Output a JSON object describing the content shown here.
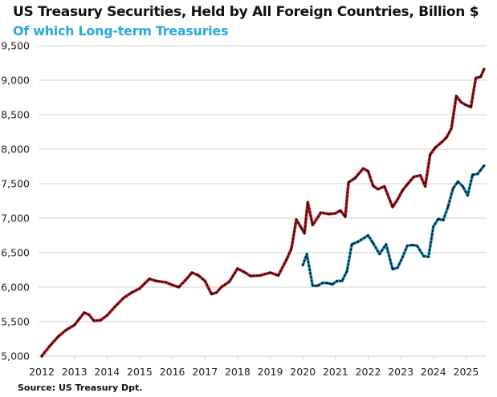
{
  "chart_data": {
    "type": "line",
    "title": "US Treasury Securities, Held by All Foreign Countries, Billion $",
    "subtitle": "Of which Long-term Treasuries",
    "source": "Source: US Treasury  Dpt.",
    "xlabel": "",
    "ylabel": "",
    "xlim": [
      2012,
      2025.6
    ],
    "ylim": [
      5000,
      9500
    ],
    "x_ticks": [
      "2012",
      "2013",
      "2014",
      "2015",
      "2016",
      "2017",
      "2018",
      "2019",
      "2020",
      "2021",
      "2022",
      "2023",
      "2024",
      "2025"
    ],
    "y_ticks": [
      "5,000",
      "5,500",
      "6,000",
      "6,500",
      "7,000",
      "7,500",
      "8,000",
      "8,500",
      "9,000",
      "9,500"
    ],
    "grid": true,
    "series": [
      {
        "name": "US Treasury Securities, Held by All Foreign Countries",
        "color": "#e8161b",
        "x": [
          2012.0,
          2012.25,
          2012.5,
          2012.75,
          2013.0,
          2013.15,
          2013.3,
          2013.45,
          2013.6,
          2013.8,
          2014.0,
          2014.25,
          2014.5,
          2014.75,
          2015.0,
          2015.15,
          2015.3,
          2015.5,
          2015.8,
          2016.0,
          2016.2,
          2016.4,
          2016.6,
          2016.8,
          2017.0,
          2017.2,
          2017.35,
          2017.5,
          2017.75,
          2018.0,
          2018.2,
          2018.4,
          2018.7,
          2019.0,
          2019.25,
          2019.5,
          2019.65,
          2019.8,
          2019.95,
          2020.05,
          2020.15,
          2020.3,
          2020.55,
          2020.8,
          2021.0,
          2021.15,
          2021.3,
          2021.4,
          2021.6,
          2021.85,
          2022.0,
          2022.15,
          2022.3,
          2022.5,
          2022.75,
          2022.9,
          2023.05,
          2023.2,
          2023.4,
          2023.6,
          2023.75,
          2023.9,
          2024.05,
          2024.25,
          2024.4,
          2024.55,
          2024.7,
          2024.85,
          2025.0,
          2025.15,
          2025.3,
          2025.45,
          2025.55
        ],
        "values": [
          5000,
          5150,
          5280,
          5380,
          5450,
          5540,
          5630,
          5600,
          5510,
          5520,
          5590,
          5720,
          5840,
          5920,
          5980,
          6050,
          6120,
          6090,
          6070,
          6030,
          6000,
          6100,
          6210,
          6170,
          6090,
          5900,
          5920,
          6000,
          6080,
          6270,
          6220,
          6160,
          6170,
          6210,
          6170,
          6400,
          6560,
          6980,
          6860,
          6780,
          7230,
          6900,
          7080,
          7060,
          7070,
          7110,
          7020,
          7520,
          7580,
          7720,
          7680,
          7470,
          7420,
          7460,
          7160,
          7270,
          7400,
          7490,
          7600,
          7620,
          7460,
          7920,
          8020,
          8100,
          8170,
          8300,
          8770,
          8680,
          8640,
          8610,
          9030,
          9050,
          9160
        ]
      },
      {
        "name": "Of which Long-term Treasuries",
        "color": "#1ea7dc",
        "x": [
          2020.0,
          2020.12,
          2020.3,
          2020.45,
          2020.6,
          2020.75,
          2020.9,
          2021.05,
          2021.2,
          2021.35,
          2021.5,
          2021.7,
          2021.9,
          2022.0,
          2022.15,
          2022.35,
          2022.55,
          2022.75,
          2022.9,
          2023.05,
          2023.2,
          2023.35,
          2023.5,
          2023.7,
          2023.85,
          2024.0,
          2024.15,
          2024.3,
          2024.45,
          2024.6,
          2024.75,
          2024.9,
          2025.05,
          2025.2,
          2025.35,
          2025.45,
          2025.55
        ],
        "values": [
          6320,
          6480,
          6020,
          6020,
          6060,
          6060,
          6040,
          6090,
          6090,
          6230,
          6620,
          6660,
          6720,
          6750,
          6640,
          6480,
          6620,
          6260,
          6280,
          6430,
          6600,
          6610,
          6600,
          6450,
          6440,
          6880,
          6990,
          6970,
          7170,
          7430,
          7530,
          7460,
          7330,
          7630,
          7640,
          7700,
          7760
        ]
      }
    ]
  }
}
